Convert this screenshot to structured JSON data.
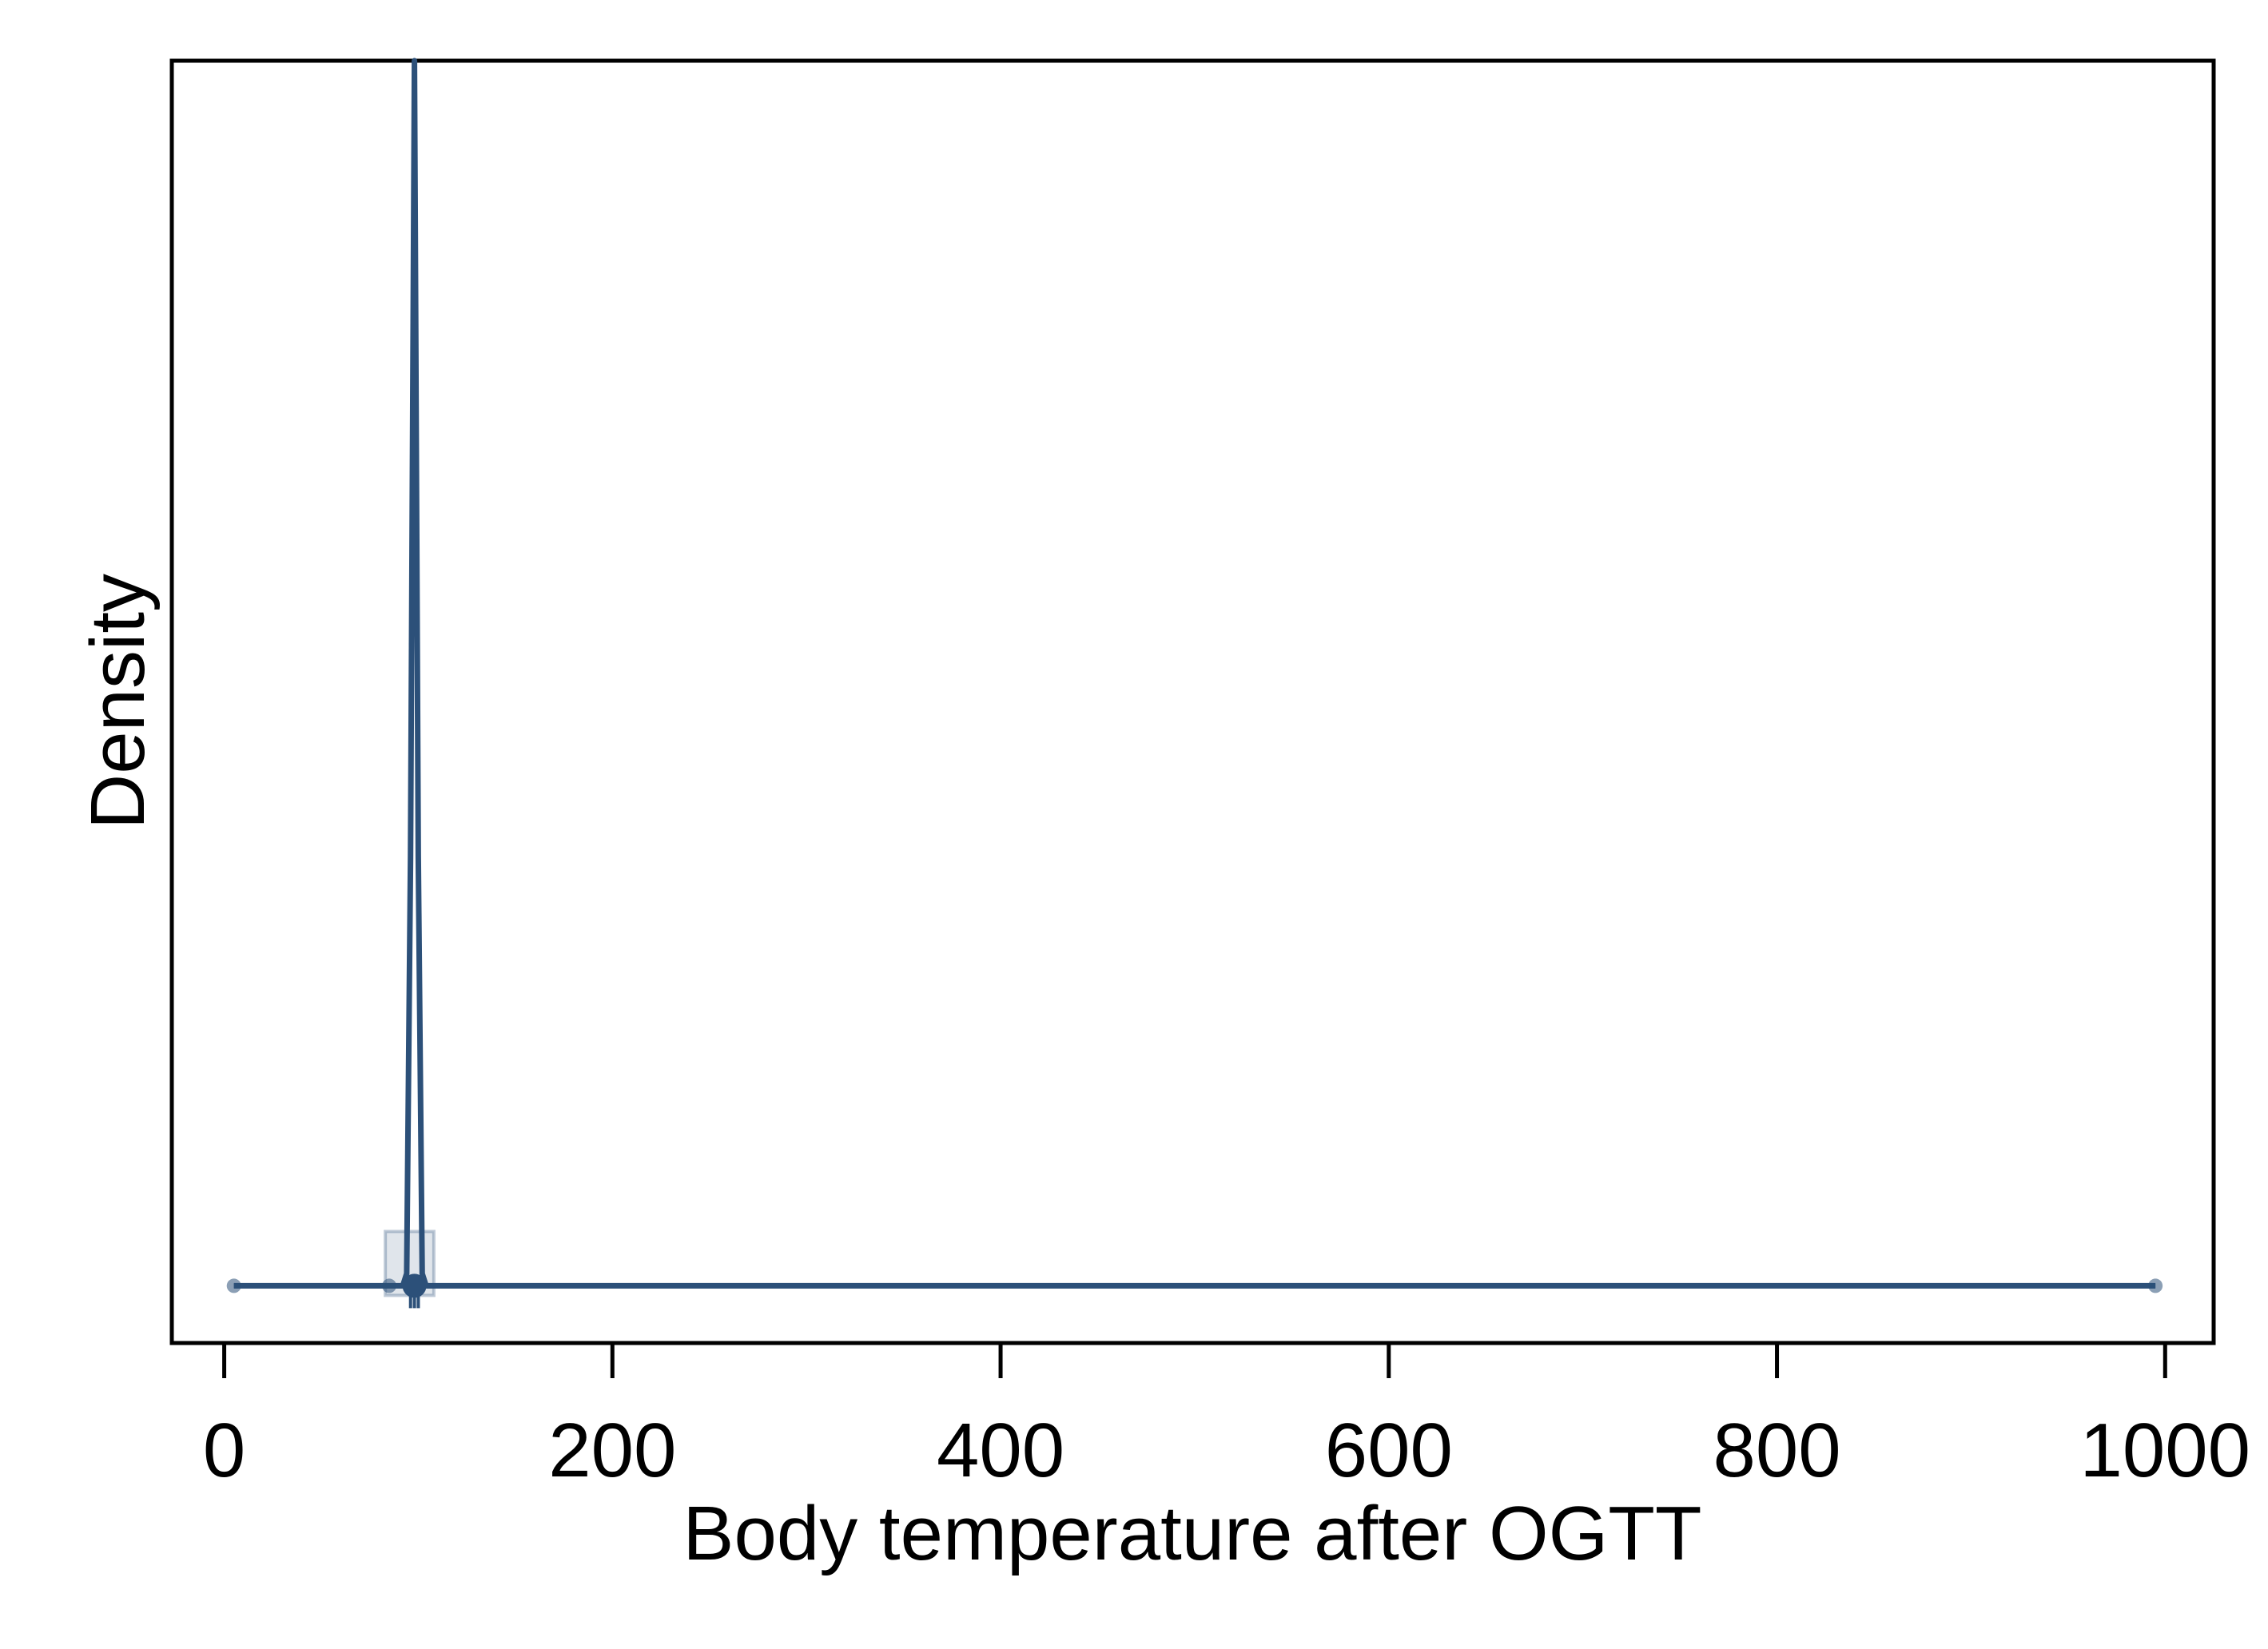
{
  "chart_data": {
    "type": "line",
    "title": "",
    "xlabel": "Body temperature after OGTT",
    "ylabel": "Density",
    "xlim": [
      -27,
      1025
    ],
    "ylim": [
      -0.0467,
      1.0
    ],
    "x_ticks": [
      0,
      200,
      400,
      600,
      800,
      1000
    ],
    "x_tick_labels": [
      "0",
      "200",
      "400",
      "600",
      "800",
      "1000"
    ],
    "y_ticks_shown": false,
    "grid": false,
    "legend": "none",
    "color": "#2c5079",
    "series": [
      {
        "style": "density curve",
        "x": [
          5,
          92,
          94,
          96,
          98,
          100,
          102,
          104,
          106,
          995
        ],
        "y": [
          0,
          0,
          0.01,
          0.35,
          1.0,
          0.35,
          0.01,
          0,
          0,
          0
        ]
      }
    ],
    "outliers": [
      5,
      85,
      995
    ],
    "whisker": [
      5,
      995
    ],
    "box": {
      "q1": 83,
      "q3": 108,
      "median": 98
    },
    "rug_ticks": [
      96,
      98,
      100
    ]
  }
}
